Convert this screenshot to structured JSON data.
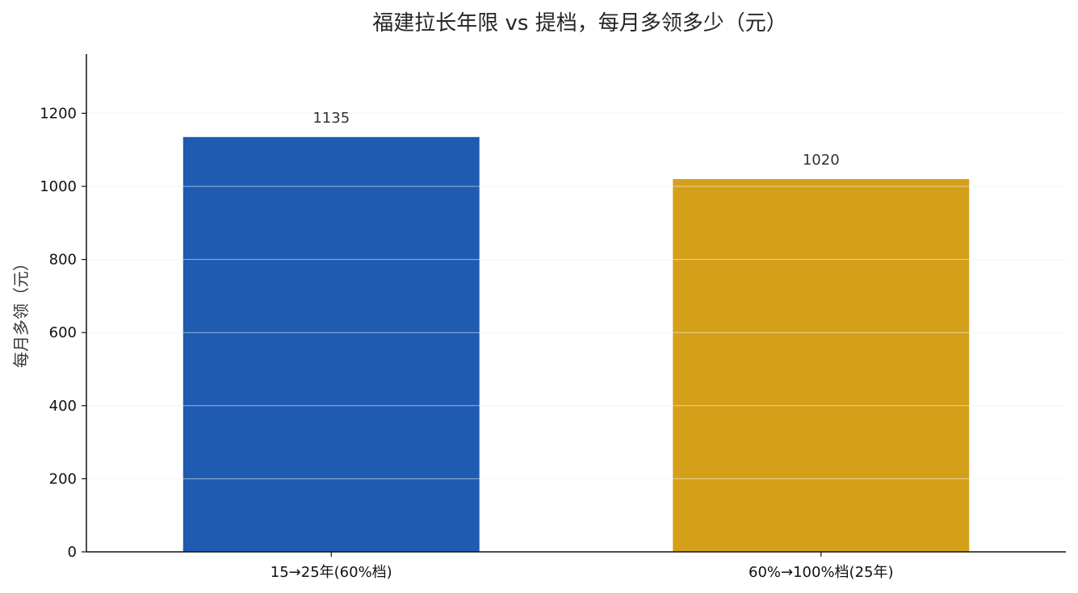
{
  "chart_data": {
    "type": "bar",
    "title": "福建拉长年限 vs 提档，每月多领多少（元）",
    "xlabel": "",
    "ylabel": "每月多领（元）",
    "categories": [
      "15→25年(60%档)",
      "60%→100%档(25年)"
    ],
    "values": [
      1135,
      1020
    ],
    "value_labels": [
      "1135",
      "1020"
    ],
    "colors": [
      "#1f5bb0",
      "#d4a01a"
    ],
    "ylim": [
      0,
      1362
    ],
    "yticks": [
      0,
      200,
      400,
      600,
      800,
      1000,
      1200
    ],
    "ytick_labels": [
      "0",
      "200",
      "400",
      "600",
      "800",
      "1000",
      "1200"
    ],
    "grid": true,
    "grid_color": "#ebebeb",
    "legend": "none"
  }
}
